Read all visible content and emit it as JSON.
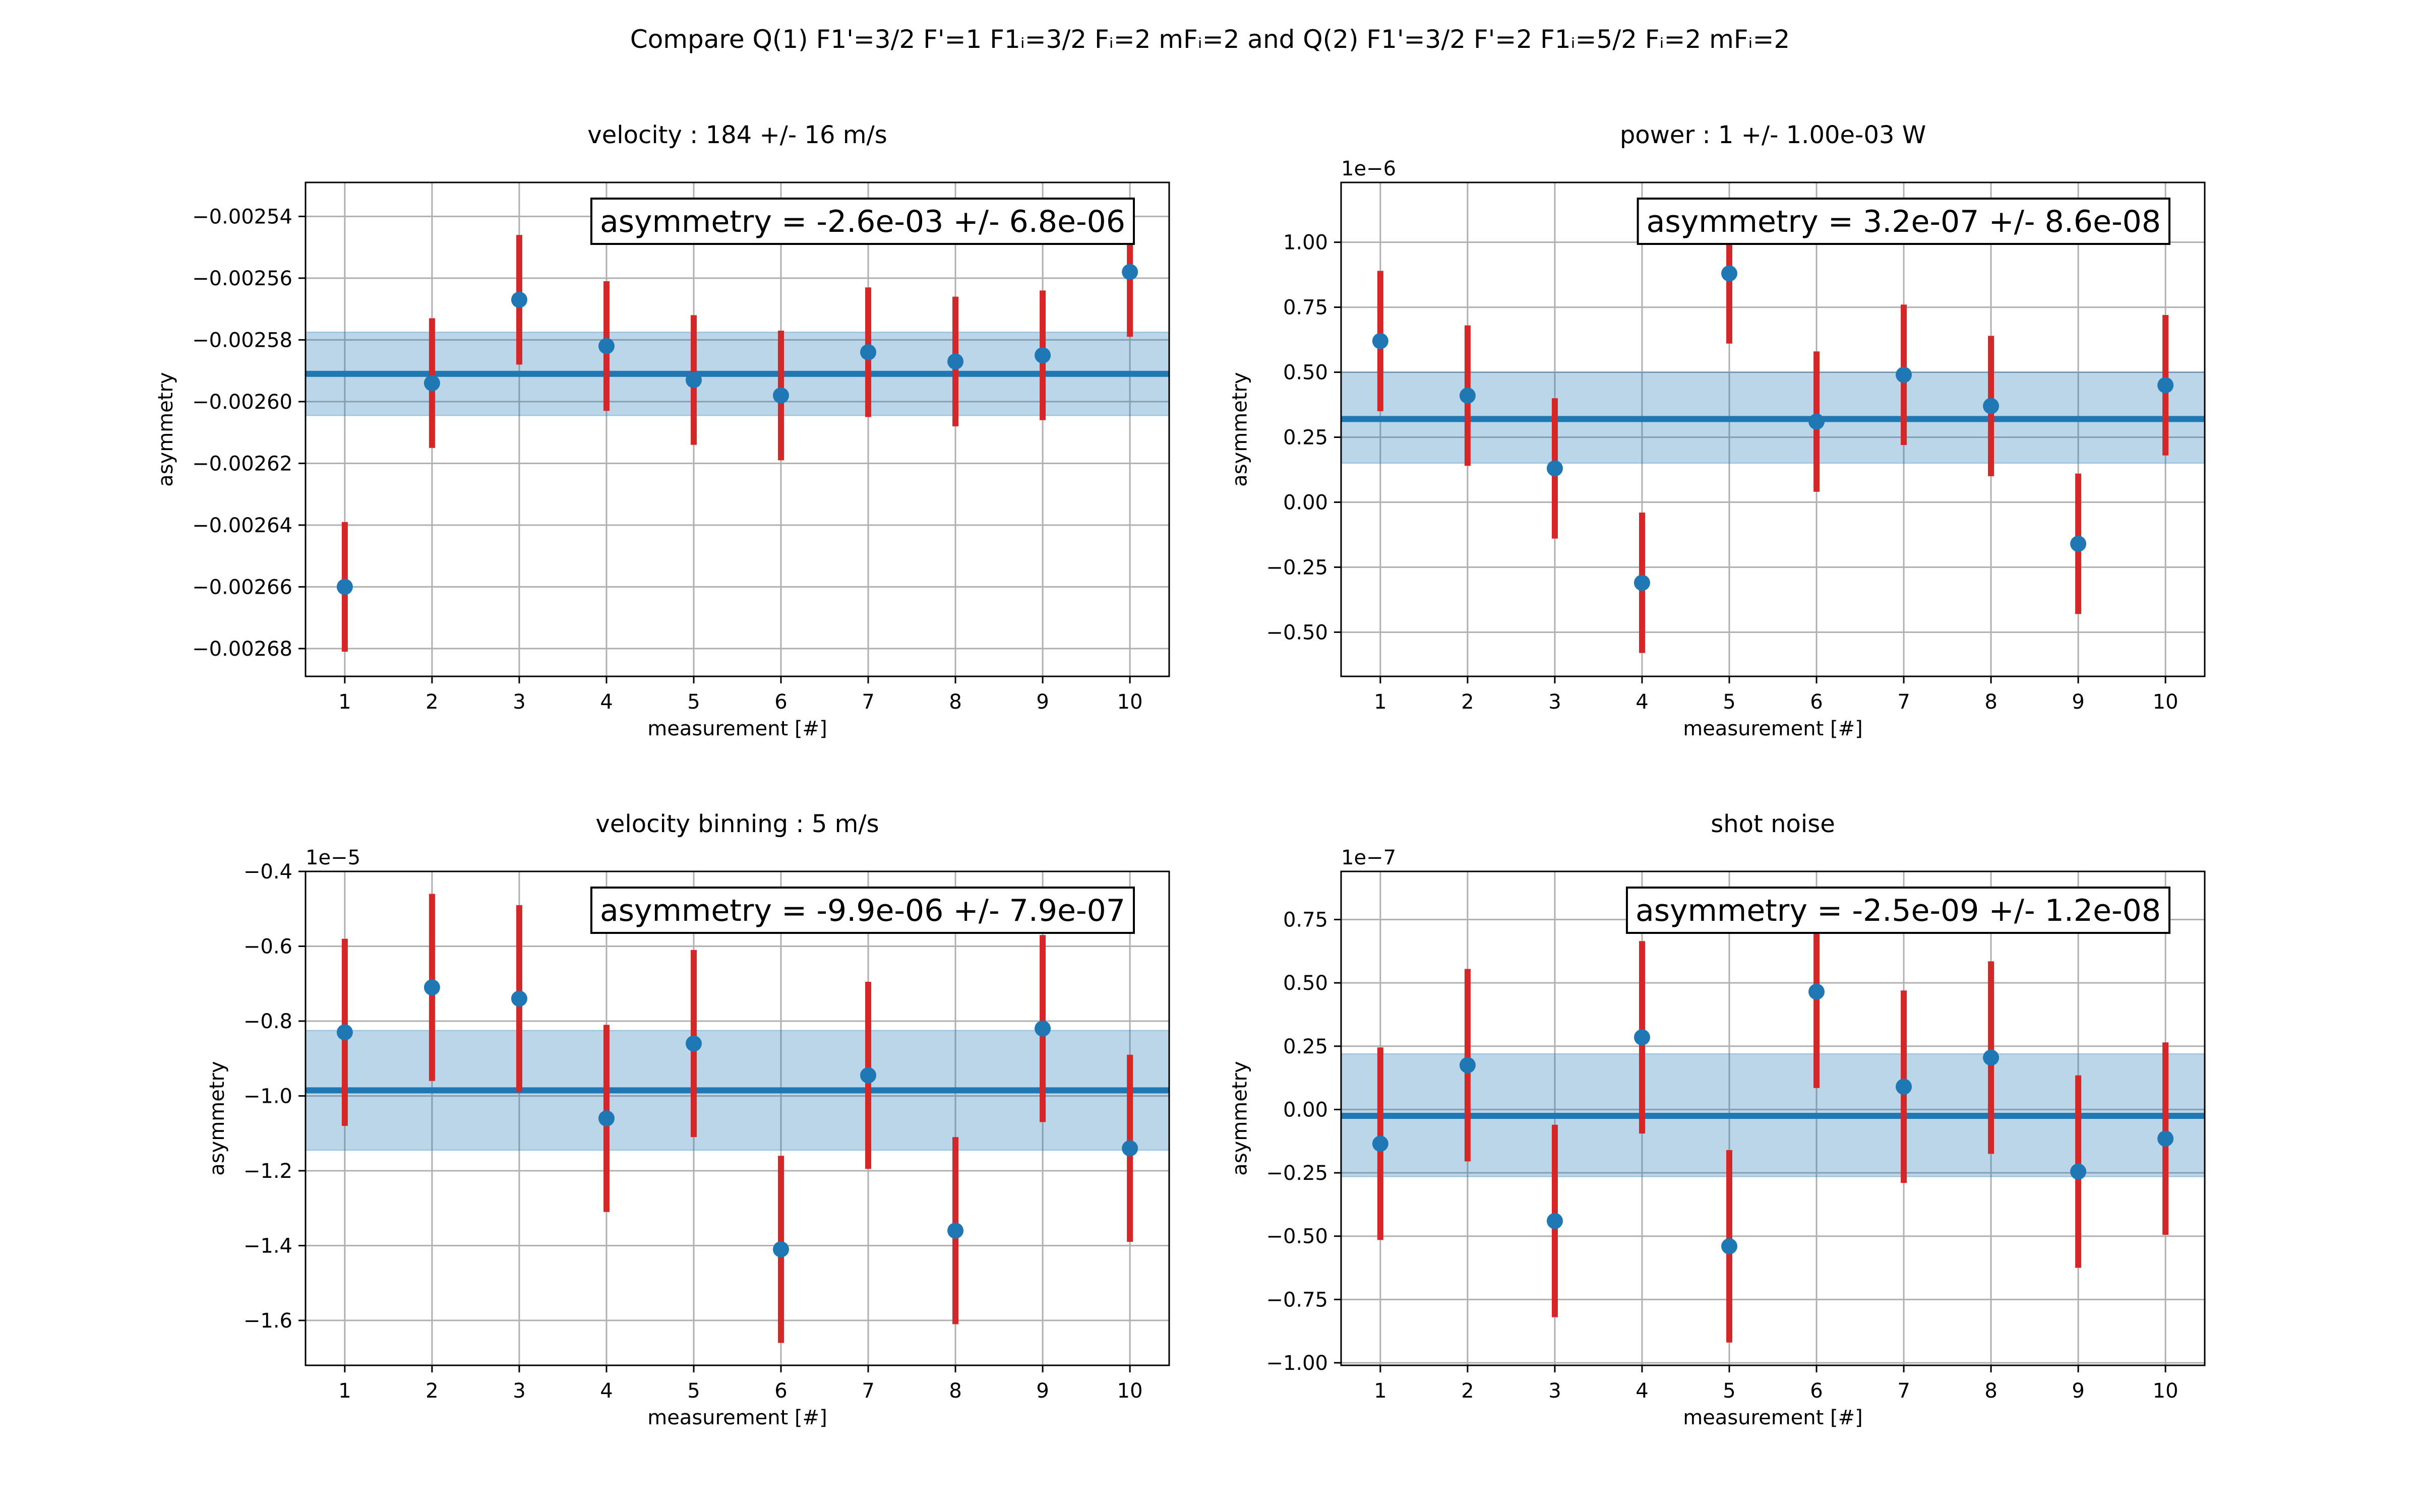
{
  "figure": {
    "suptitle": "Compare Q(1) F1'=3/2 F'=1 F1ᵢ=3/2 Fᵢ=2 mFᵢ=2 and Q(2) F1'=3/2 F'=2 F1ᵢ=5/2 Fᵢ=2 mFᵢ=2"
  },
  "colors": {
    "point": "#1f77b4",
    "errorbar": "#d62728",
    "mean_line": "#1f77b4",
    "band": "#1f77b4",
    "grid": "#b0b0b0"
  },
  "chart_data": [
    {
      "type": "scatter",
      "title": "velocity : 184 +/- 16 m/s",
      "xlabel": "measurement [#]",
      "ylabel": "asymmetry",
      "annotation": "asymmetry = -2.6e-03 +/- 6.8e-06",
      "scale_label": "",
      "x": [
        1,
        2,
        3,
        4,
        5,
        6,
        7,
        8,
        9,
        10
      ],
      "y": [
        -0.00266,
        -0.002594,
        -0.002567,
        -0.002582,
        -0.002593,
        -0.002598,
        -0.002584,
        -0.002587,
        -0.002585,
        -0.002558
      ],
      "yerr": [
        2.1e-05,
        2.1e-05,
        2.1e-05,
        2.1e-05,
        2.1e-05,
        2.1e-05,
        2.1e-05,
        2.1e-05,
        2.1e-05,
        2.1e-05
      ],
      "mean": -0.002591,
      "band": [
        -0.0026045,
        -0.0025775
      ],
      "xlim": [
        0.55,
        10.45
      ],
      "ylim": [
        -0.002689,
        -0.002529
      ],
      "xticks": [
        1,
        2,
        3,
        4,
        5,
        6,
        7,
        8,
        9,
        10
      ],
      "yticks": [
        -0.00268,
        -0.00266,
        -0.00264,
        -0.00262,
        -0.0026,
        -0.00258,
        -0.00256,
        -0.00254
      ],
      "yticklabels": [
        "−0.00268",
        "−0.00266",
        "−0.00264",
        "−0.00262",
        "−0.00260",
        "−0.00258",
        "−0.00256",
        "−0.00254"
      ],
      "grid": true
    },
    {
      "type": "scatter",
      "title": "power : 1 +/- 1.00e-03 W",
      "xlabel": "measurement [#]",
      "ylabel": "asymmetry",
      "annotation": "asymmetry = 3.2e-07 +/- 8.6e-08",
      "scale_label": "1e−6",
      "x": [
        1,
        2,
        3,
        4,
        5,
        6,
        7,
        8,
        9,
        10
      ],
      "y": [
        0.62,
        0.41,
        0.13,
        -0.31,
        0.88,
        0.31,
        0.49,
        0.37,
        -0.16,
        0.45
      ],
      "yerr": [
        0.27,
        0.27,
        0.27,
        0.27,
        0.27,
        0.27,
        0.27,
        0.27,
        0.27,
        0.27
      ],
      "mean": 0.32,
      "band": [
        0.15,
        0.5
      ],
      "xlim": [
        0.55,
        10.45
      ],
      "ylim": [
        -0.67,
        1.23
      ],
      "xticks": [
        1,
        2,
        3,
        4,
        5,
        6,
        7,
        8,
        9,
        10
      ],
      "yticks": [
        -0.5,
        -0.25,
        0.0,
        0.25,
        0.5,
        0.75,
        1.0
      ],
      "yticklabels": [
        "−0.50",
        "−0.25",
        "0.00",
        "0.25",
        "0.50",
        "0.75",
        "1.00"
      ],
      "grid": true
    },
    {
      "type": "scatter",
      "title": "velocity binning : 5 m/s",
      "xlabel": "measurement [#]",
      "ylabel": "asymmetry",
      "annotation": "asymmetry = -9.9e-06 +/- 7.9e-07",
      "scale_label": "1e−5",
      "x": [
        1,
        2,
        3,
        4,
        5,
        6,
        7,
        8,
        9,
        10
      ],
      "y": [
        -0.83,
        -0.71,
        -0.74,
        -1.06,
        -0.86,
        -1.41,
        -0.945,
        -1.36,
        -0.82,
        -1.14
      ],
      "yerr": [
        0.25,
        0.25,
        0.25,
        0.25,
        0.25,
        0.25,
        0.25,
        0.25,
        0.25,
        0.25
      ],
      "mean": -0.985,
      "band": [
        -1.145,
        -0.825
      ],
      "xlim": [
        0.55,
        10.45
      ],
      "ylim": [
        -1.72,
        -0.4
      ],
      "xticks": [
        1,
        2,
        3,
        4,
        5,
        6,
        7,
        8,
        9,
        10
      ],
      "yticks": [
        -1.6,
        -1.4,
        -1.2,
        -1.0,
        -0.8,
        -0.6,
        -0.4
      ],
      "yticklabels": [
        "−1.6",
        "−1.4",
        "−1.2",
        "−1.0",
        "−0.8",
        "−0.6",
        "−0.4"
      ],
      "grid": true
    },
    {
      "type": "scatter",
      "title": "shot noise",
      "xlabel": "measurement [#]",
      "ylabel": "asymmetry",
      "annotation": "asymmetry = -2.5e-09 +/- 1.2e-08",
      "scale_label": "1e−7",
      "x": [
        1,
        2,
        3,
        4,
        5,
        6,
        7,
        8,
        9,
        10
      ],
      "y": [
        -0.135,
        0.175,
        -0.44,
        0.285,
        -0.54,
        0.465,
        0.09,
        0.205,
        -0.245,
        -0.115
      ],
      "yerr": [
        0.38,
        0.38,
        0.38,
        0.38,
        0.38,
        0.38,
        0.38,
        0.38,
        0.38,
        0.38
      ],
      "mean": -0.025,
      "band": [
        -0.265,
        0.22
      ],
      "xlim": [
        0.55,
        10.45
      ],
      "ylim": [
        -1.01,
        0.94
      ],
      "xticks": [
        1,
        2,
        3,
        4,
        5,
        6,
        7,
        8,
        9,
        10
      ],
      "yticks": [
        -1.0,
        -0.75,
        -0.5,
        -0.25,
        0.0,
        0.25,
        0.5,
        0.75
      ],
      "yticklabels": [
        "−1.00",
        "−0.75",
        "−0.50",
        "−0.25",
        "0.00",
        "0.25",
        "0.50",
        "0.75"
      ],
      "grid": true
    }
  ]
}
